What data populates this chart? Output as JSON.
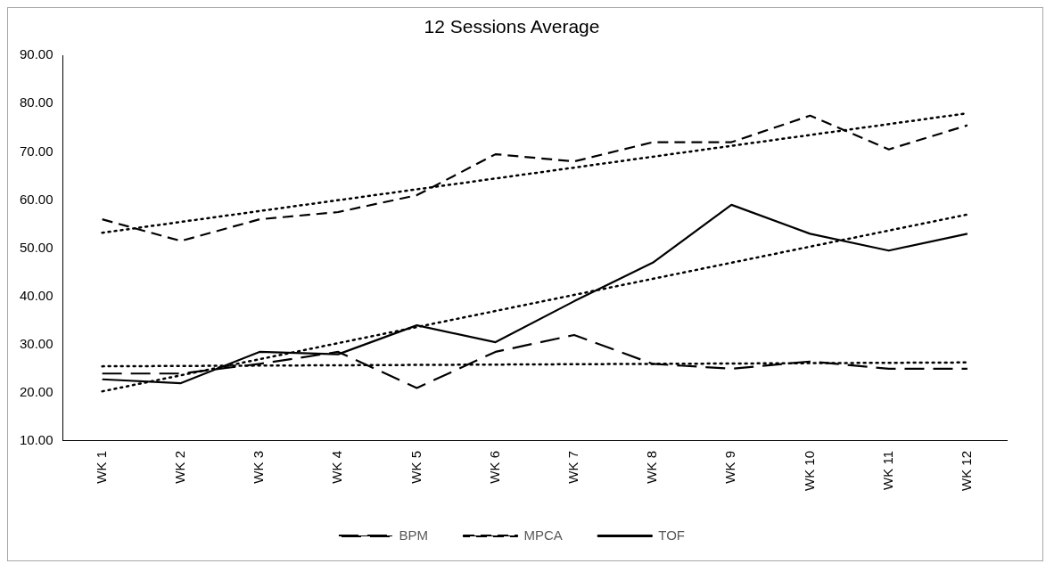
{
  "chart_data": {
    "type": "line",
    "title": "12 Sessions Average",
    "categories": [
      "WK 1",
      "WK 2",
      "WK 3",
      "WK 4",
      "WK 5",
      "WK 6",
      "WK 7",
      "WK 8",
      "WK 9",
      "WK 10",
      "WK 11",
      "WK 12"
    ],
    "series": [
      {
        "name": "BPM",
        "color": "#000000",
        "line_style": "dashed",
        "values": [
          24,
          24,
          26,
          28.5,
          21,
          28.5,
          32,
          26,
          25,
          26.5,
          25,
          25
        ]
      },
      {
        "name": "MPCA",
        "color": "#000000",
        "line_style": "dashed",
        "values": [
          56,
          51.5,
          56,
          57.5,
          61,
          69.5,
          68,
          72,
          72,
          77.5,
          70.5,
          75.5
        ]
      },
      {
        "name": "TOF",
        "color": "#000000",
        "line_style": "solid",
        "values": [
          22.8,
          22,
          28.5,
          28,
          34,
          30.5,
          39,
          47,
          59,
          53,
          49.5,
          53
        ]
      },
      {
        "type": "line",
        "color": "#000000",
        "line_style": "dotted",
        "values": [
          25.5,
          null,
          null,
          null,
          null,
          null,
          null,
          null,
          null,
          null,
          null,
          26.3
        ]
      },
      {
        "type": "line",
        "color": "#000000",
        "line_style": "dotted",
        "values": [
          53.2,
          null,
          null,
          null,
          null,
          null,
          null,
          null,
          null,
          null,
          null,
          78
        ]
      },
      {
        "type": "line",
        "color": "#000000",
        "line_style": "dotted",
        "values": [
          20.3,
          null,
          null,
          null,
          null,
          null,
          null,
          null,
          null,
          null,
          null,
          57
        ]
      }
    ],
    "ylim": [
      10,
      90
    ],
    "yticks": [
      {
        "value": 10,
        "label": "10.00"
      },
      {
        "value": 20,
        "label": "20.00"
      },
      {
        "value": 30,
        "label": "30.00"
      },
      {
        "value": 40,
        "label": "40.00"
      },
      {
        "value": 50,
        "label": "50.00"
      },
      {
        "value": 60,
        "label": "60.00"
      },
      {
        "value": 70,
        "label": "70.00"
      },
      {
        "value": 80,
        "label": "80.00"
      },
      {
        "value": 90,
        "label": "90.00"
      }
    ],
    "grid": false,
    "legend": "bottom",
    "marker": "none"
  }
}
